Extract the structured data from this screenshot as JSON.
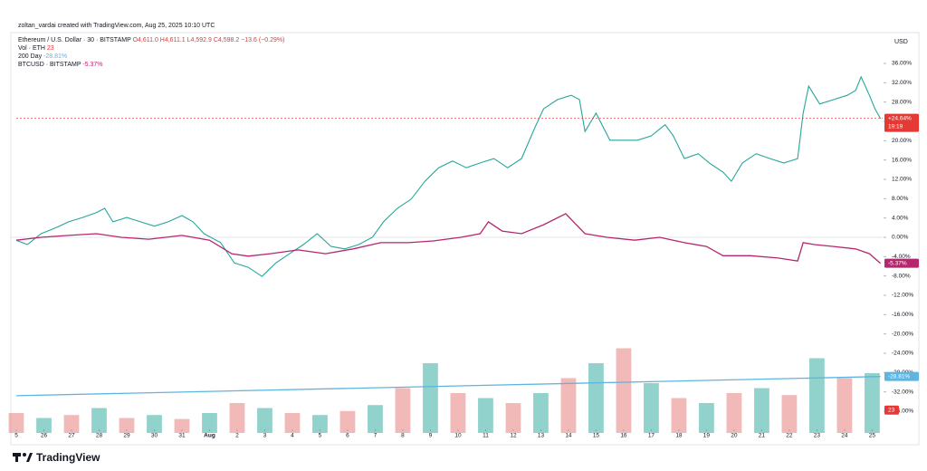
{
  "chart_data": {
    "type": "line",
    "attribution": "zoltan_vardai created with TradingView.com, Aug 25, 2025 10:10 UTC",
    "currency": "USD",
    "ohlc": "O4,611.0 H4,611.1 L4,592.9 C4,598.2 −13.6 (−0.29%)",
    "brand": "TradingView",
    "xlim": [
      0,
      31.38
    ],
    "ylim": [
      -40.5,
      42
    ],
    "baseline": 0,
    "grid": false,
    "xticks": [
      {
        "value": 0,
        "label": "5"
      },
      {
        "value": 1,
        "label": "26"
      },
      {
        "value": 2,
        "label": "27"
      },
      {
        "value": 3,
        "label": "28"
      },
      {
        "value": 4,
        "label": "29"
      },
      {
        "value": 5,
        "label": "30"
      },
      {
        "value": 6,
        "label": "31"
      },
      {
        "value": 7,
        "label": "Aug"
      },
      {
        "value": 8,
        "label": "2"
      },
      {
        "value": 9,
        "label": "3"
      },
      {
        "value": 10,
        "label": "4"
      },
      {
        "value": 11,
        "label": "5"
      },
      {
        "value": 12,
        "label": "6"
      },
      {
        "value": 13,
        "label": "7"
      },
      {
        "value": 14,
        "label": "8"
      },
      {
        "value": 15,
        "label": "9"
      },
      {
        "value": 16,
        "label": "10"
      },
      {
        "value": 17,
        "label": "11"
      },
      {
        "value": 18,
        "label": "12"
      },
      {
        "value": 19,
        "label": "13"
      },
      {
        "value": 20,
        "label": "14"
      },
      {
        "value": 21,
        "label": "15"
      },
      {
        "value": 22,
        "label": "16"
      },
      {
        "value": 23,
        "label": "17"
      },
      {
        "value": 24,
        "label": "18"
      },
      {
        "value": 25,
        "label": "19"
      },
      {
        "value": 26,
        "label": "20"
      },
      {
        "value": 27,
        "label": "21"
      },
      {
        "value": 28,
        "label": "22"
      },
      {
        "value": 29,
        "label": "23"
      },
      {
        "value": 30,
        "label": "24"
      },
      {
        "value": 31,
        "label": "25"
      }
    ],
    "yticks": [
      {
        "value": 36,
        "label": "36.00%"
      },
      {
        "value": 32,
        "label": "32.00%"
      },
      {
        "value": 28,
        "label": "28.00%"
      },
      {
        "value": 24,
        "label": "24.00%"
      },
      {
        "value": 20,
        "label": "20.00%"
      },
      {
        "value": 16,
        "label": "16.00%"
      },
      {
        "value": 12,
        "label": "12.00%"
      },
      {
        "value": 8,
        "label": "8.00%"
      },
      {
        "value": 4,
        "label": "4.00%"
      },
      {
        "value": 0,
        "label": "0.00%"
      },
      {
        "value": -4,
        "label": "-4.00%"
      },
      {
        "value": -8,
        "label": "-8.00%"
      },
      {
        "value": -12,
        "label": "-12.00%"
      },
      {
        "value": -16,
        "label": "-16.00%"
      },
      {
        "value": -20,
        "label": "-20.00%"
      },
      {
        "value": -24,
        "label": "-24.00%"
      },
      {
        "value": -28,
        "label": "-28.00%"
      },
      {
        "value": -32,
        "label": "-32.00%"
      },
      {
        "value": -36,
        "label": "-36.00%"
      }
    ],
    "series": [
      {
        "name": "Ethereum / U.S. Dollar · 30 · BITSTAMP",
        "color": "#26a69a",
        "x": [
          0,
          0.4,
          0.9,
          1.4,
          1.9,
          2.4,
          2.9,
          3.2,
          3.5,
          4.0,
          4.5,
          5.0,
          5.5,
          6.0,
          6.4,
          6.8,
          7.4,
          7.9,
          8.4,
          8.9,
          9.4,
          9.9,
          10.4,
          10.9,
          11.4,
          11.9,
          12.4,
          12.9,
          13.3,
          13.8,
          14.3,
          14.8,
          15.3,
          15.8,
          16.3,
          16.8,
          17.3,
          17.8,
          18.3,
          18.8,
          19.1,
          19.6,
          20.1,
          20.4,
          20.6,
          21.0,
          21.5,
          22.0,
          22.5,
          23.0,
          23.5,
          23.8,
          24.2,
          24.7,
          25.1,
          25.6,
          25.9,
          26.3,
          26.8,
          27.3,
          27.8,
          28.3,
          28.5,
          28.7,
          29.1,
          29.6,
          30.1,
          30.4,
          30.6,
          30.9,
          31.1,
          31.3
        ],
        "values": [
          -0.6,
          -1.5,
          0.75,
          1.9,
          3.2,
          4.1,
          5.1,
          6,
          3.2,
          4.1,
          3.2,
          2.3,
          3.2,
          4.5,
          3.2,
          0.75,
          -1.1,
          -5.3,
          -6.2,
          -8.1,
          -5.3,
          -3.4,
          -1.5,
          0.75,
          -1.9,
          -2.4,
          -1.5,
          0,
          3.2,
          6,
          7.9,
          11.6,
          14.4,
          15.8,
          14.4,
          15.4,
          16.3,
          14.4,
          16.3,
          22.9,
          26.6,
          28.5,
          29.4,
          28.5,
          21.9,
          25.7,
          20.1,
          20.1,
          20.1,
          21,
          23.3,
          21,
          16.3,
          17.3,
          15.4,
          13.5,
          11.6,
          15.4,
          17.3,
          16.3,
          15.4,
          16.3,
          25.7,
          31.3,
          27.6,
          28.5,
          29.4,
          30.4,
          33.2,
          29.4,
          26.6,
          24.6
        ]
      },
      {
        "name": "BTCUSD · BITSTAMP",
        "color": "#b5266e",
        "last_label": "-5.37%",
        "x": [
          0,
          0.9,
          1.9,
          2.9,
          3.8,
          4.8,
          6.0,
          7.0,
          7.8,
          8.4,
          9.2,
          10.2,
          11.2,
          12.2,
          13.2,
          14.2,
          15.1,
          16.1,
          16.8,
          17.1,
          17.6,
          18.3,
          19.1,
          19.9,
          20.6,
          21.4,
          22.4,
          23.3,
          24.2,
          25.0,
          25.6,
          26.6,
          27.6,
          28.3,
          28.5,
          28.9,
          29.6,
          30.4,
          30.9,
          31.3
        ],
        "values": [
          -0.6,
          0,
          0.4,
          0.75,
          0,
          -0.4,
          0.4,
          -0.6,
          -3.4,
          -3.9,
          -3.4,
          -2.6,
          -3.4,
          -2.4,
          -1.1,
          -1.1,
          -0.75,
          0,
          0.75,
          3.2,
          1.3,
          0.75,
          2.6,
          4.9,
          0.75,
          0,
          -0.6,
          0,
          -1.1,
          -1.9,
          -3.8,
          -3.8,
          -4.3,
          -4.9,
          -1.1,
          -1.5,
          -1.9,
          -2.4,
          -3.4,
          -5.4
        ]
      },
      {
        "name": "200 Day",
        "color": "#5fb5e0",
        "last_label": "-28.81%",
        "x": [
          0,
          31.3
        ],
        "values": [
          -32.8,
          -28.81
        ]
      }
    ],
    "volume": {
      "name": "Vol · ETH",
      "last_label": "23",
      "ylim": [
        0,
        100
      ],
      "color": "#e5737380",
      "up_color": "#26a69a80",
      "x": [
        0,
        1,
        2,
        3,
        4,
        5,
        6,
        7,
        8,
        9,
        10,
        11,
        12,
        13,
        14,
        15,
        16,
        17,
        18,
        19,
        20,
        21,
        22,
        23,
        24,
        25,
        26,
        27,
        28,
        29,
        30,
        31
      ],
      "values": [
        20,
        15,
        18,
        25,
        15,
        18,
        14,
        20,
        30,
        25,
        20,
        18,
        22,
        28,
        45,
        70,
        40,
        35,
        30,
        40,
        55,
        70,
        85,
        50,
        35,
        30,
        40,
        45,
        38,
        75,
        55,
        60
      ]
    },
    "tags": [
      {
        "label": "+24.64%",
        "sub": "19:19",
        "value": 24.64,
        "color": "#e53935"
      },
      {
        "label": "-5.37%",
        "value": -5.37,
        "color": "#b5266e"
      },
      {
        "label": "-28.81%",
        "value": -28.81,
        "color": "#5fb5e0"
      }
    ],
    "volume_tag": {
      "label": "23",
      "value": 23,
      "color": "#e53935"
    }
  }
}
